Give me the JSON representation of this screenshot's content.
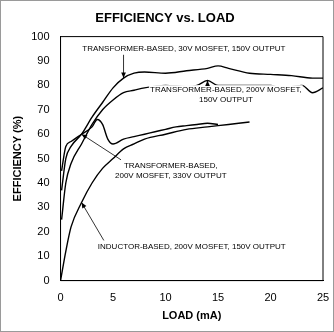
{
  "chart_data": {
    "type": "line",
    "title": "EFFICIENCY vs. LOAD",
    "x_label": "LOAD (mA)",
    "y_label": "EFFICIENCY (%)",
    "xlim": [
      0,
      25
    ],
    "xticks": [
      0,
      5,
      10,
      15,
      20,
      25
    ],
    "ylim": [
      0,
      100
    ],
    "yticks": [
      0,
      10,
      20,
      30,
      40,
      50,
      60,
      70,
      80,
      90,
      100
    ],
    "grid": false,
    "series": [
      {
        "name": "TRANSFORMER-BASED, 30V MOSFET, 150V OUTPUT",
        "color": "#000000",
        "x": [
          0.1,
          0.5,
          1,
          2,
          3,
          4,
          5,
          6,
          7,
          8,
          10,
          12,
          14,
          15,
          16,
          18,
          20,
          22,
          24,
          25
        ],
        "values": [
          37,
          50,
          55,
          60,
          67,
          73,
          79,
          83,
          85,
          85.5,
          85,
          86,
          87,
          88,
          87,
          85,
          84.5,
          84,
          83,
          83
        ]
      },
      {
        "name": "TRANSFORMER-BASED, 200V MOSFET, 150V OUTPUT",
        "color": "#000000",
        "x": [
          0.1,
          0.5,
          1,
          2,
          3,
          4,
          5,
          6,
          7,
          8,
          10,
          12,
          13,
          14,
          15,
          17,
          19,
          20,
          21,
          22,
          23,
          24,
          25
        ],
        "values": [
          25,
          40,
          48,
          56,
          64,
          70,
          74,
          77,
          78,
          79,
          80,
          79.5,
          80,
          82,
          80,
          80,
          80,
          80,
          79,
          79.5,
          80,
          77,
          79
        ]
      },
      {
        "name": "TRANSFORMER-BASED, 200V MOSFET, 330V OUTPUT",
        "color": "#000000",
        "x": [
          0.1,
          0.5,
          1,
          2,
          3,
          3.5,
          4,
          4.5,
          5,
          6,
          7,
          8,
          9,
          10,
          11,
          12,
          13,
          14,
          15
        ],
        "values": [
          45,
          55,
          57,
          60,
          63,
          66,
          64,
          58,
          56,
          58,
          59,
          60,
          61,
          62,
          63,
          63.5,
          64,
          64.5,
          64
        ]
      },
      {
        "name": "INDUCTOR-BASED, 200V MOSFET, 150V OUTPUT",
        "color": "#000000",
        "x": [
          0,
          0.5,
          1,
          2,
          3,
          4,
          5,
          6,
          7,
          8,
          10,
          12,
          14,
          16,
          18
        ],
        "values": [
          0,
          12,
          22,
          32,
          40,
          46,
          50,
          54,
          56,
          58,
          60,
          62,
          63,
          64,
          65
        ]
      }
    ]
  }
}
